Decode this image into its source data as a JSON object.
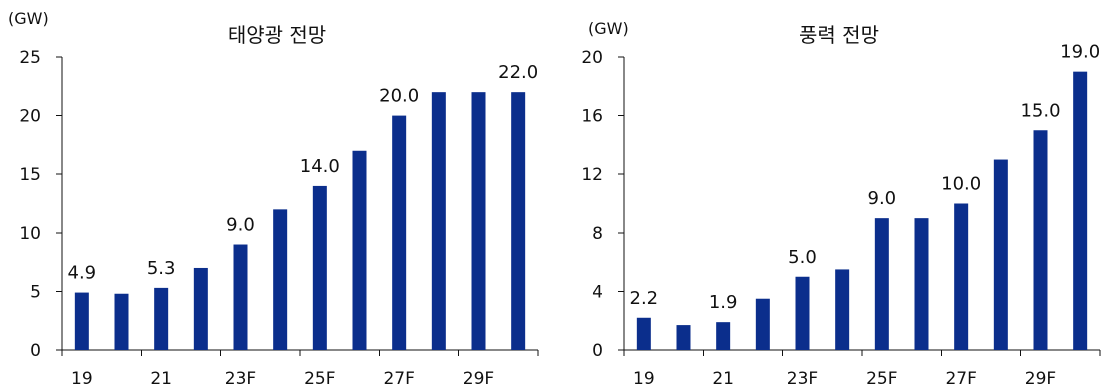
{
  "chart_data": [
    {
      "type": "bar",
      "title": "태양광 전망",
      "ylabel": "(GW)",
      "xlabel": "",
      "categories": [
        "19",
        "",
        "21",
        "",
        "23F",
        "",
        "25F",
        "",
        "27F",
        "",
        "29F",
        ""
      ],
      "values": [
        4.9,
        4.8,
        5.3,
        7.0,
        9.0,
        12.0,
        14.0,
        17.0,
        20.0,
        22.0,
        22.0,
        22.0
      ],
      "data_labels": [
        "4.9",
        "",
        "5.3",
        "",
        "9.0",
        "",
        "14.0",
        "",
        "20.0",
        "",
        "",
        "22.0"
      ],
      "ylim": [
        0,
        25
      ],
      "yticks": [
        0,
        5,
        10,
        15,
        20,
        25
      ],
      "grid": false,
      "bar_color": "#0b2e8c"
    },
    {
      "type": "bar",
      "title": "풍력 전망",
      "ylabel": "(GW)",
      "xlabel": "",
      "categories": [
        "19",
        "",
        "21",
        "",
        "23F",
        "",
        "25F",
        "",
        "27F",
        "",
        "29F",
        ""
      ],
      "values": [
        2.2,
        1.7,
        1.9,
        3.5,
        5.0,
        5.5,
        9.0,
        9.0,
        10.0,
        13.0,
        15.0,
        19.0
      ],
      "data_labels": [
        "2.2",
        "",
        "1.9",
        "",
        "5.0",
        "",
        "9.0",
        "",
        "10.0",
        "",
        "15.0",
        "19.0"
      ],
      "ylim": [
        0,
        20
      ],
      "yticks": [
        0,
        4,
        8,
        12,
        16,
        20
      ],
      "grid": false,
      "bar_color": "#0b2e8c"
    }
  ]
}
